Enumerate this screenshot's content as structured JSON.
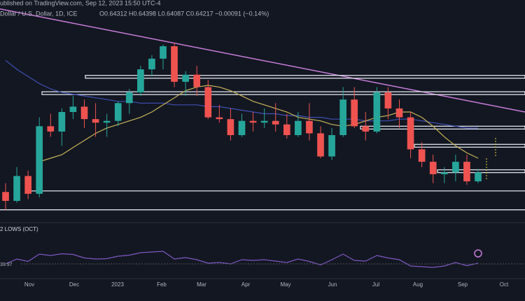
{
  "header": {
    "published": "ublished on TradingView.com, Sep 12, 2023 15:50 UTC-4",
    "symbol": "Dollar / U.S. Dollar, 1D, ICE",
    "ohlc": "O0.64312 H0.64398 L0.64087 C0.64217 −0.00091 (−0.14%)"
  },
  "chart_data": {
    "type": "candlestick",
    "open": [
      0.631,
      0.626,
      0.64,
      0.63,
      0.668,
      0.665,
      0.676,
      0.679,
      0.672,
      0.67,
      0.671,
      0.681,
      0.687,
      0.7,
      0.706,
      0.713,
      0.693,
      0.697,
      0.69,
      0.673,
      0.672,
      0.663,
      0.671,
      0.67,
      0.671,
      0.669,
      0.663,
      0.671,
      0.664,
      0.651,
      0.663,
      0.683,
      0.668,
      0.665,
      0.687,
      0.678,
      0.673,
      0.655,
      0.648,
      0.641,
      0.642,
      0.648,
      0.637
    ],
    "high": [
      0.636,
      0.645,
      0.643,
      0.673,
      0.675,
      0.678,
      0.685,
      0.683,
      0.681,
      0.675,
      0.682,
      0.689,
      0.702,
      0.708,
      0.714,
      0.715,
      0.699,
      0.702,
      0.694,
      0.68,
      0.678,
      0.675,
      0.676,
      0.678,
      0.681,
      0.675,
      0.676,
      0.681,
      0.668,
      0.667,
      0.69,
      0.69,
      0.676,
      0.69,
      0.69,
      0.683,
      0.676,
      0.659,
      0.652,
      0.645,
      0.652,
      0.652,
      0.644
    ],
    "low": [
      0.621,
      0.625,
      0.627,
      0.628,
      0.662,
      0.657,
      0.672,
      0.667,
      0.662,
      0.662,
      0.668,
      0.675,
      0.685,
      0.696,
      0.7,
      0.69,
      0.685,
      0.685,
      0.672,
      0.67,
      0.66,
      0.662,
      0.665,
      0.667,
      0.665,
      0.661,
      0.662,
      0.66,
      0.65,
      0.649,
      0.662,
      0.667,
      0.66,
      0.664,
      0.672,
      0.667,
      0.65,
      0.645,
      0.636,
      0.636,
      0.637,
      0.635,
      0.636
    ],
    "close": [
      0.626,
      0.64,
      0.63,
      0.668,
      0.665,
      0.676,
      0.679,
      0.672,
      0.67,
      0.671,
      0.681,
      0.687,
      0.7,
      0.706,
      0.713,
      0.693,
      0.697,
      0.69,
      0.673,
      0.672,
      0.663,
      0.671,
      0.67,
      0.671,
      0.669,
      0.663,
      0.671,
      0.664,
      0.651,
      0.663,
      0.683,
      0.668,
      0.665,
      0.687,
      0.678,
      0.673,
      0.655,
      0.648,
      0.641,
      0.642,
      0.648,
      0.637,
      0.642
    ],
    "up_color": "#26a69a",
    "down_color": "#ef5350",
    "ylim": [
      0.613,
      0.739
    ],
    "categories": [
      "Nov",
      "Dec",
      "2023",
      "Feb",
      "Mar",
      "Apr",
      "May",
      "Jun",
      "Jul",
      "Aug",
      "Sep",
      "Oct"
    ],
    "ma50": {
      "color": "#c9b458",
      "values": [
        null,
        null,
        null,
        0.648,
        0.65,
        0.652,
        0.656,
        0.66,
        0.664,
        0.667,
        0.669,
        0.671,
        0.673,
        0.676,
        0.68,
        0.684,
        0.688,
        0.69,
        0.691,
        0.69,
        0.688,
        0.685,
        0.682,
        0.68,
        0.678,
        0.676,
        0.673,
        0.672,
        0.671,
        0.669,
        0.668,
        0.669,
        0.671,
        0.673,
        0.674,
        0.676,
        0.676,
        0.673,
        0.668,
        0.662,
        0.657,
        0.653,
        0.65
      ]
    },
    "ma200": {
      "color": "#3f51b5",
      "values": [
        0.705,
        0.7,
        0.696,
        0.692,
        0.689,
        0.687,
        0.686,
        0.685,
        0.684,
        0.683,
        0.682,
        0.682,
        0.681,
        0.681,
        0.681,
        0.68,
        0.68,
        0.68,
        0.679,
        0.679,
        0.678,
        0.677,
        0.676,
        0.675,
        0.675,
        0.674,
        0.674,
        0.673,
        0.673,
        0.672,
        0.672,
        0.672,
        0.671,
        0.671,
        0.671,
        0.672,
        0.672,
        0.671,
        0.67,
        0.669,
        0.668,
        0.667,
        0.667
      ]
    },
    "trendline": {
      "color": "#c77dd8",
      "values": [
        0.734,
        0.676
      ]
    },
    "levels": [
      0.6958,
      0.6866,
      0.6672,
      0.657,
      0.6427,
      0.6316,
      0.621
    ],
    "annotation": "2 LOWS (OCT)",
    "rsi": {
      "label": "39.97",
      "color": "#7e57c2",
      "ylim": [
        0,
        100
      ],
      "values": [
        38,
        52,
        45,
        66,
        62,
        67,
        65,
        55,
        52,
        53,
        60,
        63,
        70,
        72,
        74,
        52,
        56,
        50,
        40,
        42,
        38,
        50,
        48,
        50,
        46,
        42,
        52,
        45,
        35,
        50,
        66,
        48,
        46,
        62,
        55,
        50,
        32,
        30,
        28,
        32,
        42,
        33,
        40
      ]
    }
  }
}
